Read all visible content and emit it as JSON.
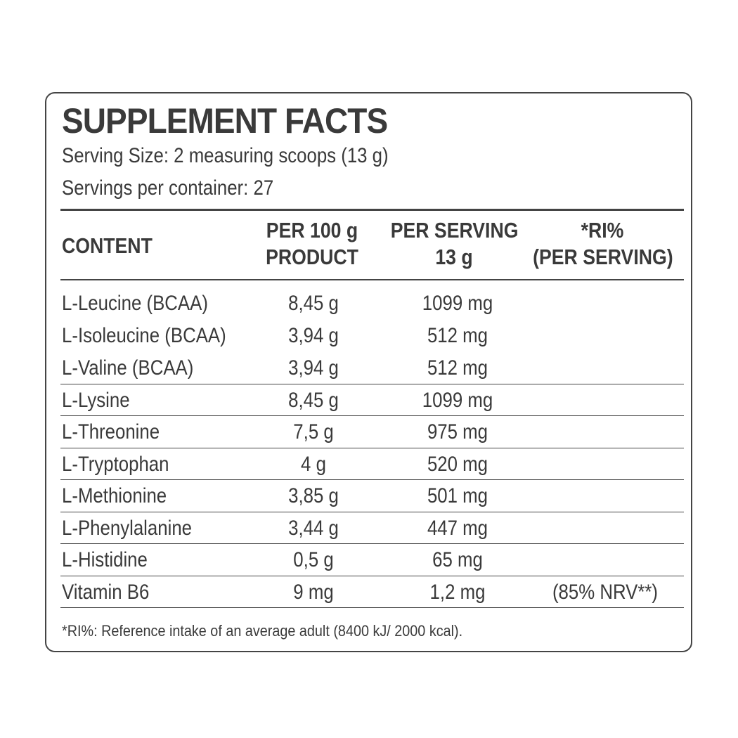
{
  "label": {
    "title": "SUPPLEMENT FACTS",
    "serving_size": "Serving Size: 2 measuring scoops (13 g)",
    "servings_per_container": "Servings per container: 27",
    "headers": {
      "content": "CONTENT",
      "per100_line1": "PER 100 g",
      "per100_line2": "PRODUCT",
      "perserving_line1": "PER SERVING",
      "perserving_line2": "13 g",
      "ri_line1": "*RI%",
      "ri_line2": "(PER SERVING)"
    },
    "rows": [
      {
        "name": "L-Leucine (BCAA)",
        "per100": "8,45 g",
        "perserving": "1099 mg",
        "ri": ""
      },
      {
        "name": "L-Isoleucine (BCAA)",
        "per100": "3,94 g",
        "perserving": "512 mg",
        "ri": ""
      },
      {
        "name": "L-Valine (BCAA)",
        "per100": "3,94 g",
        "perserving": "512 mg",
        "ri": ""
      },
      {
        "name": "L-Lysine",
        "per100": "8,45 g",
        "perserving": "1099 mg",
        "ri": ""
      },
      {
        "name": "L-Threonine",
        "per100": "7,5 g",
        "perserving": "975 mg",
        "ri": ""
      },
      {
        "name": "L-Tryptophan",
        "per100": "4 g",
        "perserving": "520 mg",
        "ri": ""
      },
      {
        "name": "L-Methionine",
        "per100": "3,85 g",
        "perserving": "501 mg",
        "ri": ""
      },
      {
        "name": "L-Phenylalanine",
        "per100": "3,44 g",
        "perserving": "447 mg",
        "ri": ""
      },
      {
        "name": "L-Histidine",
        "per100": "0,5 g",
        "perserving": "65 mg",
        "ri": ""
      },
      {
        "name": "Vitamin B6",
        "per100": "9 mg",
        "perserving": "1,2 mg",
        "ri": "(85% NRV**)"
      }
    ],
    "footnote": "*RI%: Reference intake of an average adult (8400 kJ/ 2000 kcal)."
  }
}
